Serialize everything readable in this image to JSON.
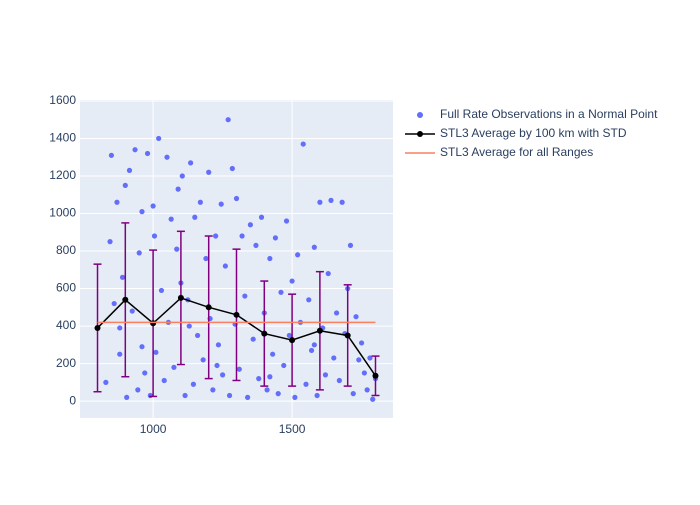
{
  "chart_data": {
    "type": "scatter",
    "xlim": [
      737,
      1863
    ],
    "ylim": [
      -90,
      1605
    ],
    "xticks": [
      1000,
      1500
    ],
    "yticks": [
      0,
      200,
      400,
      600,
      800,
      1000,
      1200,
      1400,
      1600
    ],
    "grid": true,
    "legend": "outside-right",
    "series": [
      {
        "name": "Full Rate Observations in a Normal Point",
        "type": "scatter",
        "color": "#636efa",
        "x": [
          830,
          845,
          850,
          860,
          870,
          880,
          890,
          900,
          905,
          915,
          925,
          935,
          945,
          950,
          960,
          970,
          980,
          990,
          1000,
          1005,
          1010,
          1020,
          1030,
          1040,
          1050,
          1055,
          1065,
          1075,
          1085,
          1090,
          1100,
          1105,
          1115,
          1125,
          1135,
          1145,
          1150,
          1160,
          1170,
          1180,
          1190,
          1200,
          1205,
          1215,
          1225,
          1235,
          1245,
          1250,
          1260,
          1270,
          1275,
          1285,
          1295,
          1300,
          1310,
          1320,
          1330,
          1340,
          1350,
          1360,
          1370,
          1380,
          1390,
          1400,
          1410,
          1420,
          1430,
          1440,
          1450,
          1460,
          1470,
          1480,
          1490,
          1500,
          1510,
          1520,
          1530,
          1540,
          1550,
          1560,
          1570,
          1580,
          1590,
          1600,
          1610,
          1620,
          1630,
          1640,
          1650,
          1660,
          1670,
          1680,
          1690,
          1700,
          1710,
          1720,
          1730,
          1740,
          1750,
          1760,
          1770,
          1780,
          1790,
          1800,
          880,
          960,
          1130,
          1230,
          1420,
          1580
        ],
        "values": [
          100,
          850,
          1310,
          520,
          1060,
          250,
          660,
          1150,
          20,
          1230,
          480,
          1340,
          60,
          790,
          1010,
          150,
          1320,
          30,
          1040,
          880,
          260,
          1400,
          590,
          110,
          1300,
          420,
          970,
          180,
          810,
          1130,
          630,
          1200,
          30,
          540,
          1270,
          90,
          980,
          350,
          1060,
          220,
          760,
          1220,
          440,
          60,
          880,
          300,
          1050,
          140,
          720,
          1500,
          30,
          1240,
          410,
          1080,
          170,
          880,
          560,
          20,
          940,
          330,
          830,
          120,
          980,
          470,
          60,
          760,
          250,
          870,
          40,
          580,
          190,
          960,
          350,
          640,
          20,
          780,
          420,
          1370,
          90,
          540,
          270,
          820,
          30,
          1060,
          390,
          140,
          680,
          1070,
          230,
          470,
          110,
          1060,
          360,
          600,
          830,
          40,
          450,
          220,
          310,
          150,
          60,
          230,
          10,
          120,
          390,
          290,
          400,
          190,
          130,
          300
        ]
      },
      {
        "name": "STL3 Average by 100 km with STD",
        "type": "line",
        "color": "#000000",
        "error_color": "#800080",
        "x": [
          800,
          900,
          1000,
          1100,
          1200,
          1300,
          1400,
          1500,
          1600,
          1700,
          1800
        ],
        "values": [
          390,
          540,
          415,
          550,
          500,
          460,
          360,
          325,
          375,
          350,
          135
        ],
        "errors": [
          340,
          410,
          390,
          355,
          380,
          350,
          280,
          245,
          315,
          270,
          105
        ]
      },
      {
        "name": "STL3 Average for all Ranges",
        "type": "line",
        "color": "#fa8060",
        "x": [
          800,
          1800
        ],
        "values": [
          420,
          420
        ]
      }
    ]
  }
}
